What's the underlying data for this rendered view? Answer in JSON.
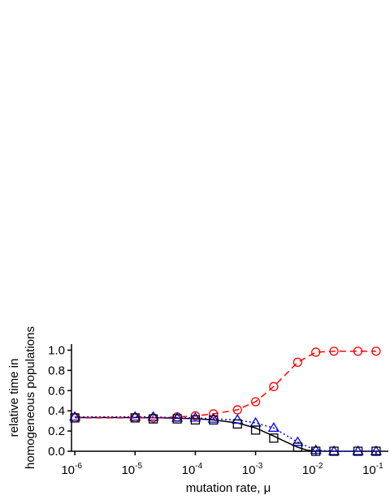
{
  "chart_data": {
    "type": "line",
    "log_x": true,
    "xlabel": "mutation rate, μ",
    "ylabel": [
      "relative time in",
      "homogeneous populations"
    ],
    "xlim": [
      8.8e-07,
      0.16
    ],
    "ylim": [
      0,
      1.06
    ],
    "xticks": [
      {
        "value": 1e-06,
        "label": "10",
        "sup": "-6"
      },
      {
        "value": 1e-05,
        "label": "10",
        "sup": "-5"
      },
      {
        "value": 0.0001,
        "label": "10",
        "sup": "-4"
      },
      {
        "value": 0.001,
        "label": "10",
        "sup": "-3"
      },
      {
        "value": 0.01,
        "label": "10",
        "sup": "-2"
      },
      {
        "value": 0.1,
        "label": "10",
        "sup": "-1"
      }
    ],
    "yticks": [
      {
        "value": 0,
        "label": "0.0"
      },
      {
        "value": 0.2,
        "label": "0.2"
      },
      {
        "value": 0.4,
        "label": "0.4"
      },
      {
        "value": 0.6,
        "label": "0.6"
      },
      {
        "value": 0.8,
        "label": "0.8"
      },
      {
        "value": 1,
        "label": "1.0"
      }
    ],
    "series": [
      {
        "color": "#000000",
        "marker": "none",
        "line": "solid",
        "x": [
          1e-06,
          1e-05,
          3e-05,
          0.0001,
          0.0002,
          0.0005,
          0.001,
          0.002,
          0.003,
          0.005,
          0.007,
          0.01
        ],
        "values": [
          0.333,
          0.333,
          0.33,
          0.322,
          0.31,
          0.28,
          0.23,
          0.15,
          0.1,
          0.04,
          0.012,
          0.0
        ]
      },
      {
        "color": "#ff0000",
        "marker": "circle",
        "line": "dashed",
        "x": [
          1e-06,
          1e-05,
          2e-05,
          5e-05,
          0.0001,
          0.0002,
          0.0005,
          0.001,
          0.002,
          0.005,
          0.01,
          0.02,
          0.05,
          0.1
        ],
        "values": [
          0.33,
          0.33,
          0.33,
          0.34,
          0.35,
          0.37,
          0.41,
          0.49,
          0.64,
          0.88,
          0.98,
          0.99,
          0.99,
          0.99
        ]
      },
      {
        "color": "#0000ff",
        "marker": "triangle",
        "line": "dotted",
        "x": [
          1e-06,
          1e-05,
          2e-05,
          5e-05,
          0.0001,
          0.0002,
          0.0005,
          0.001,
          0.002,
          0.005,
          0.01,
          0.02,
          0.05,
          0.1
        ],
        "values": [
          0.34,
          0.34,
          0.34,
          0.33,
          0.33,
          0.32,
          0.31,
          0.28,
          0.23,
          0.09,
          0.01,
          0.0,
          0.0,
          0.0
        ]
      },
      {
        "color": "#000000",
        "marker": "square",
        "line": "none",
        "x": [
          1e-06,
          1e-05,
          2e-05,
          5e-05,
          0.0001,
          0.0002,
          0.0005,
          0.001,
          0.002,
          0.005,
          0.01,
          0.02,
          0.05,
          0.1
        ],
        "values": [
          0.33,
          0.33,
          0.32,
          0.32,
          0.31,
          0.31,
          0.27,
          0.21,
          0.13,
          0.04,
          0.0,
          0.0,
          0.0,
          0.0
        ]
      }
    ]
  }
}
